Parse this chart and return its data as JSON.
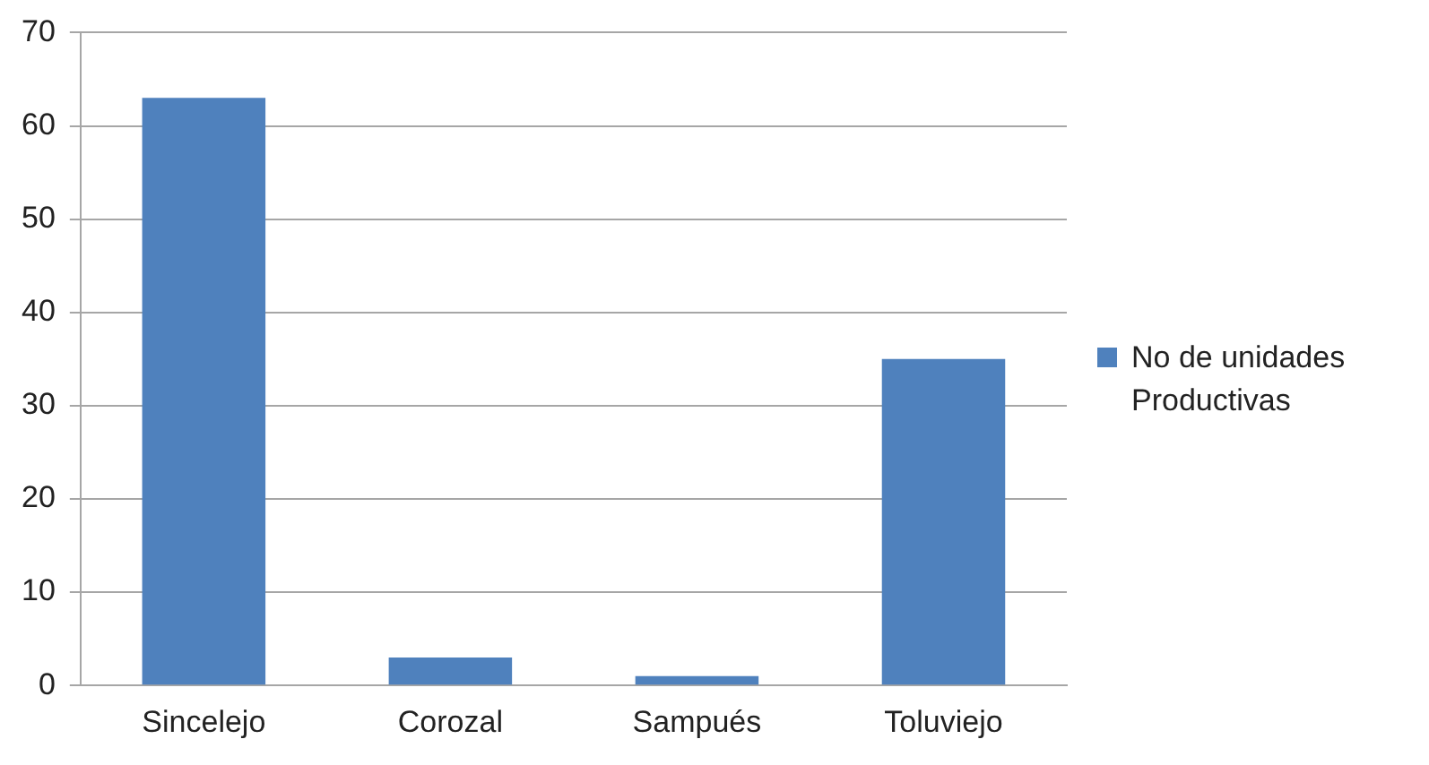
{
  "chart_data": {
    "type": "bar",
    "categories": [
      "Sincelejo",
      "Corozal",
      "Sampués",
      "Toluviejo"
    ],
    "series": [
      {
        "name": "No de unidades Productivas",
        "color": "#4f81bd",
        "values": [
          63,
          3,
          1,
          35
        ]
      }
    ],
    "ylim": [
      0,
      70
    ],
    "yticks": [
      0,
      10,
      20,
      30,
      40,
      50,
      60,
      70
    ],
    "grid": "y",
    "legend": "right"
  }
}
